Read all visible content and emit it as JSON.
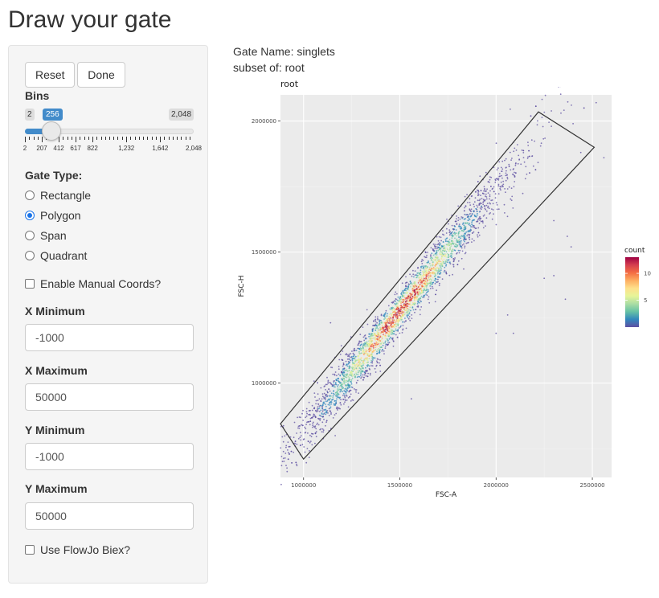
{
  "page": {
    "title": "Draw your gate"
  },
  "buttons": {
    "reset": "Reset",
    "done": "Done"
  },
  "bins": {
    "label": "Bins",
    "min_label": "2",
    "max_label": "2,048",
    "value_label": "256",
    "value": 256,
    "min": 2,
    "max": 2048,
    "tick_labels": [
      "2",
      "207",
      "412",
      "617",
      "822",
      "1,232",
      "1,642",
      "2,048"
    ]
  },
  "gate_type": {
    "label": "Gate Type:",
    "options": [
      "Rectangle",
      "Polygon",
      "Span",
      "Quadrant"
    ],
    "selected": "Polygon"
  },
  "manual_coords": {
    "label": "Enable Manual Coords?",
    "checked": false
  },
  "x_min": {
    "label": "X Minimum",
    "value": "-1000"
  },
  "x_max": {
    "label": "X Maximum",
    "value": "50000"
  },
  "y_min": {
    "label": "Y Minimum",
    "value": "-1000"
  },
  "y_max": {
    "label": "Y Maximum",
    "value": "50000"
  },
  "flowjo": {
    "label": "Use FlowJo Biex?",
    "checked": false
  },
  "gate_info": {
    "name_line": "Gate Name: singlets",
    "subset_line": "subset of: root"
  },
  "chart_data": {
    "type": "scatter",
    "title": "root",
    "xlabel": "FSC-A",
    "ylabel": "FSC-H",
    "xlim": [
      880000,
      2600000
    ],
    "ylim": [
      640000,
      2100000
    ],
    "x_ticks": [
      1000000,
      1500000,
      2000000,
      2500000
    ],
    "x_tick_labels": [
      "1000000",
      "1500000",
      "2000000",
      "2500000"
    ],
    "y_ticks": [
      1000000,
      1500000,
      2000000
    ],
    "y_tick_labels": [
      "1000000",
      "1500000",
      "2000000"
    ],
    "grid": true,
    "legend": {
      "title": "count",
      "labels": [
        "10",
        "5"
      ],
      "label_values": [
        10,
        5
      ],
      "max": 13,
      "position": "right"
    },
    "density_band": {
      "x_range": [
        880000,
        2490000
      ],
      "fit_slope": 0.93,
      "fit_intercept": -120000,
      "peak_x": 1500000,
      "points_drawn": 3200
    },
    "gate_polygon": [
      [
        880000,
        845000
      ],
      [
        2220000,
        2035000
      ],
      [
        2510000,
        1900000
      ],
      [
        1000000,
        710000
      ]
    ],
    "colorscale": [
      "#5e4fa2",
      "#3288bd",
      "#66c2a5",
      "#abdda4",
      "#e6f598",
      "#fee08b",
      "#fdae61",
      "#f46d43",
      "#d53e4f",
      "#9e0142"
    ]
  }
}
